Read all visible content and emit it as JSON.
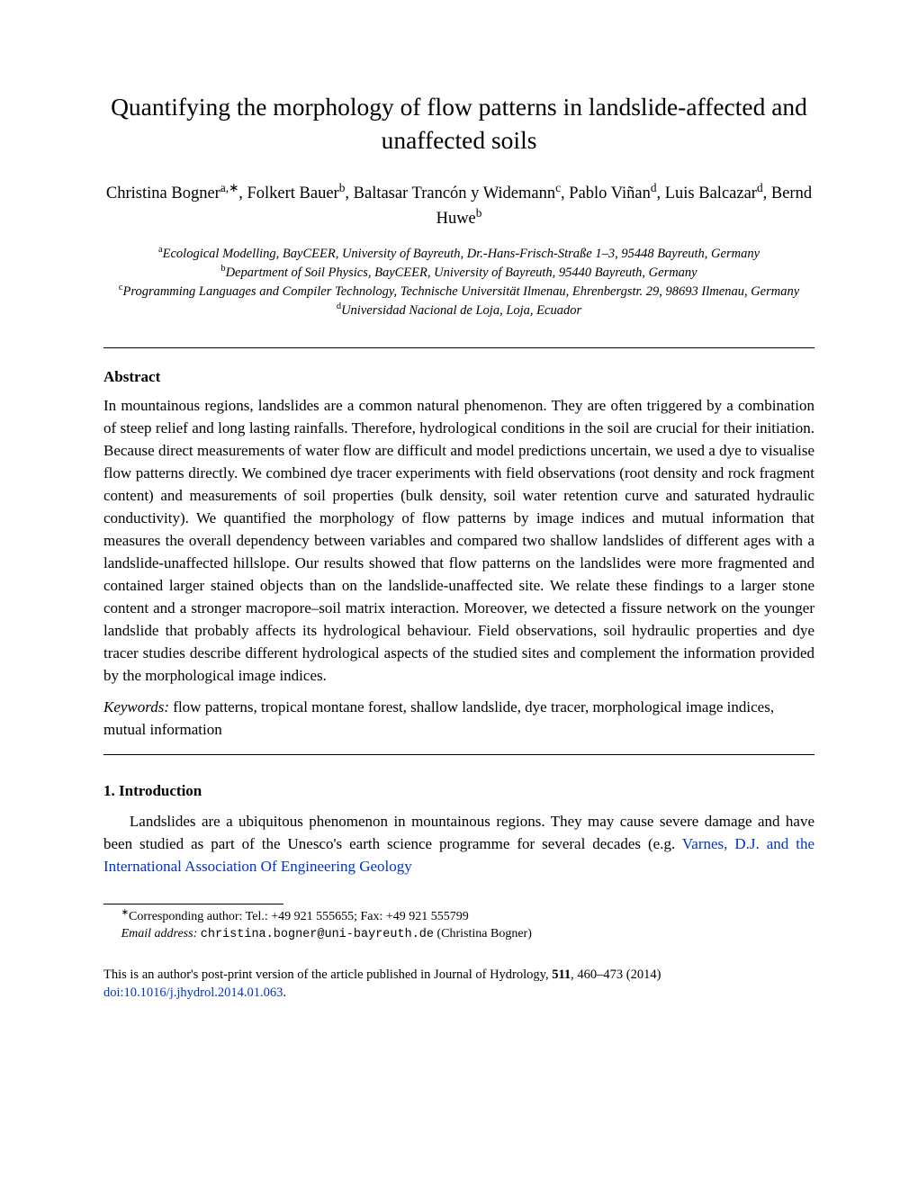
{
  "title": "Quantifying the morphology of flow patterns in landslide-affected and unaffected soils",
  "authors_html": "Christina Bogner<sup>a,∗</sup>, Folkert Bauer<sup>b</sup>, Baltasar Trancón y Widemann<sup>c</sup>, Pablo Viñan<sup>d</sup>, Luis Balcazar<sup>d</sup>, Bernd Huwe<sup>b</sup>",
  "affiliations": {
    "a": "<sup>a</sup>Ecological Modelling, BayCEER, University of Bayreuth, Dr.-Hans-Frisch-Straße 1–3, 95448 Bayreuth, Germany",
    "b": "<sup>b</sup>Department of Soil Physics, BayCEER, University of Bayreuth, 95440 Bayreuth, Germany",
    "c": "<sup>c</sup>Programming Languages and Compiler Technology, Technische Universität Ilmenau, Ehrenbergstr. 29, 98693 Ilmenau, Germany",
    "d": "<sup>d</sup>Universidad Nacional de Loja, Loja, Ecuador"
  },
  "abstract_heading": "Abstract",
  "abstract_text": "In mountainous regions, landslides are a common natural phenomenon. They are often triggered by a combination of steep relief and long lasting rainfalls. Therefore, hydrological conditions in the soil are crucial for their initiation. Because direct measurements of water flow are difficult and model predictions uncertain, we used a dye to visualise flow patterns directly. We combined dye tracer experiments with field observations (root density and rock fragment content) and measurements of soil properties (bulk density, soil water retention curve and saturated hydraulic conductivity). We quantified the morphology of flow patterns by image indices and mutual information that measures the overall dependency between variables and compared two shallow landslides of different ages with a landslide-unaffected hillslope. Our results showed that flow patterns on the landslides were more fragmented and contained larger stained objects than on the landslide-unaffected site. We relate these findings to a larger stone content and a stronger macropore–soil matrix interaction. Moreover, we detected a fissure network on the younger landslide that probably affects its hydrological behaviour. Field observations, soil hydraulic properties and dye tracer studies describe different hydrological aspects of the studied sites and complement the information provided by the morphological image indices.",
  "keywords_label": "Keywords:",
  "keywords_text": "   flow patterns, tropical montane forest, shallow landslide, dye tracer, morphological image indices, mutual information",
  "section1_heading": "1.  Introduction",
  "section1_text_pre": "Landslides are a ubiquitous phenomenon in mountainous regions.  They may cause severe damage and have been studied as part of the Unesco's earth science programme for several decades (e.g. ",
  "section1_link": "Varnes, D.J. and the International Association Of Engineering Geology",
  "footnote_corr": "Corresponding author: Tel.: +49 921 555655; Fax: +49 921 555799",
  "footnote_email_label": "Email address:",
  "footnote_email": "christina.bogner@uni-bayreuth.de",
  "footnote_email_author": " (Christina Bogner)",
  "postprint_pre": "This is an author's post-print version of the article published in Journal of Hydrology, ",
  "postprint_vol": "511",
  "postprint_pages": ", 460–473 (2014) ",
  "doi": "doi:10.1016/j.jhydrol.2014.01.063",
  "link_color": "#0033cc",
  "text_color": "#000000",
  "bg_color": "#ffffff"
}
